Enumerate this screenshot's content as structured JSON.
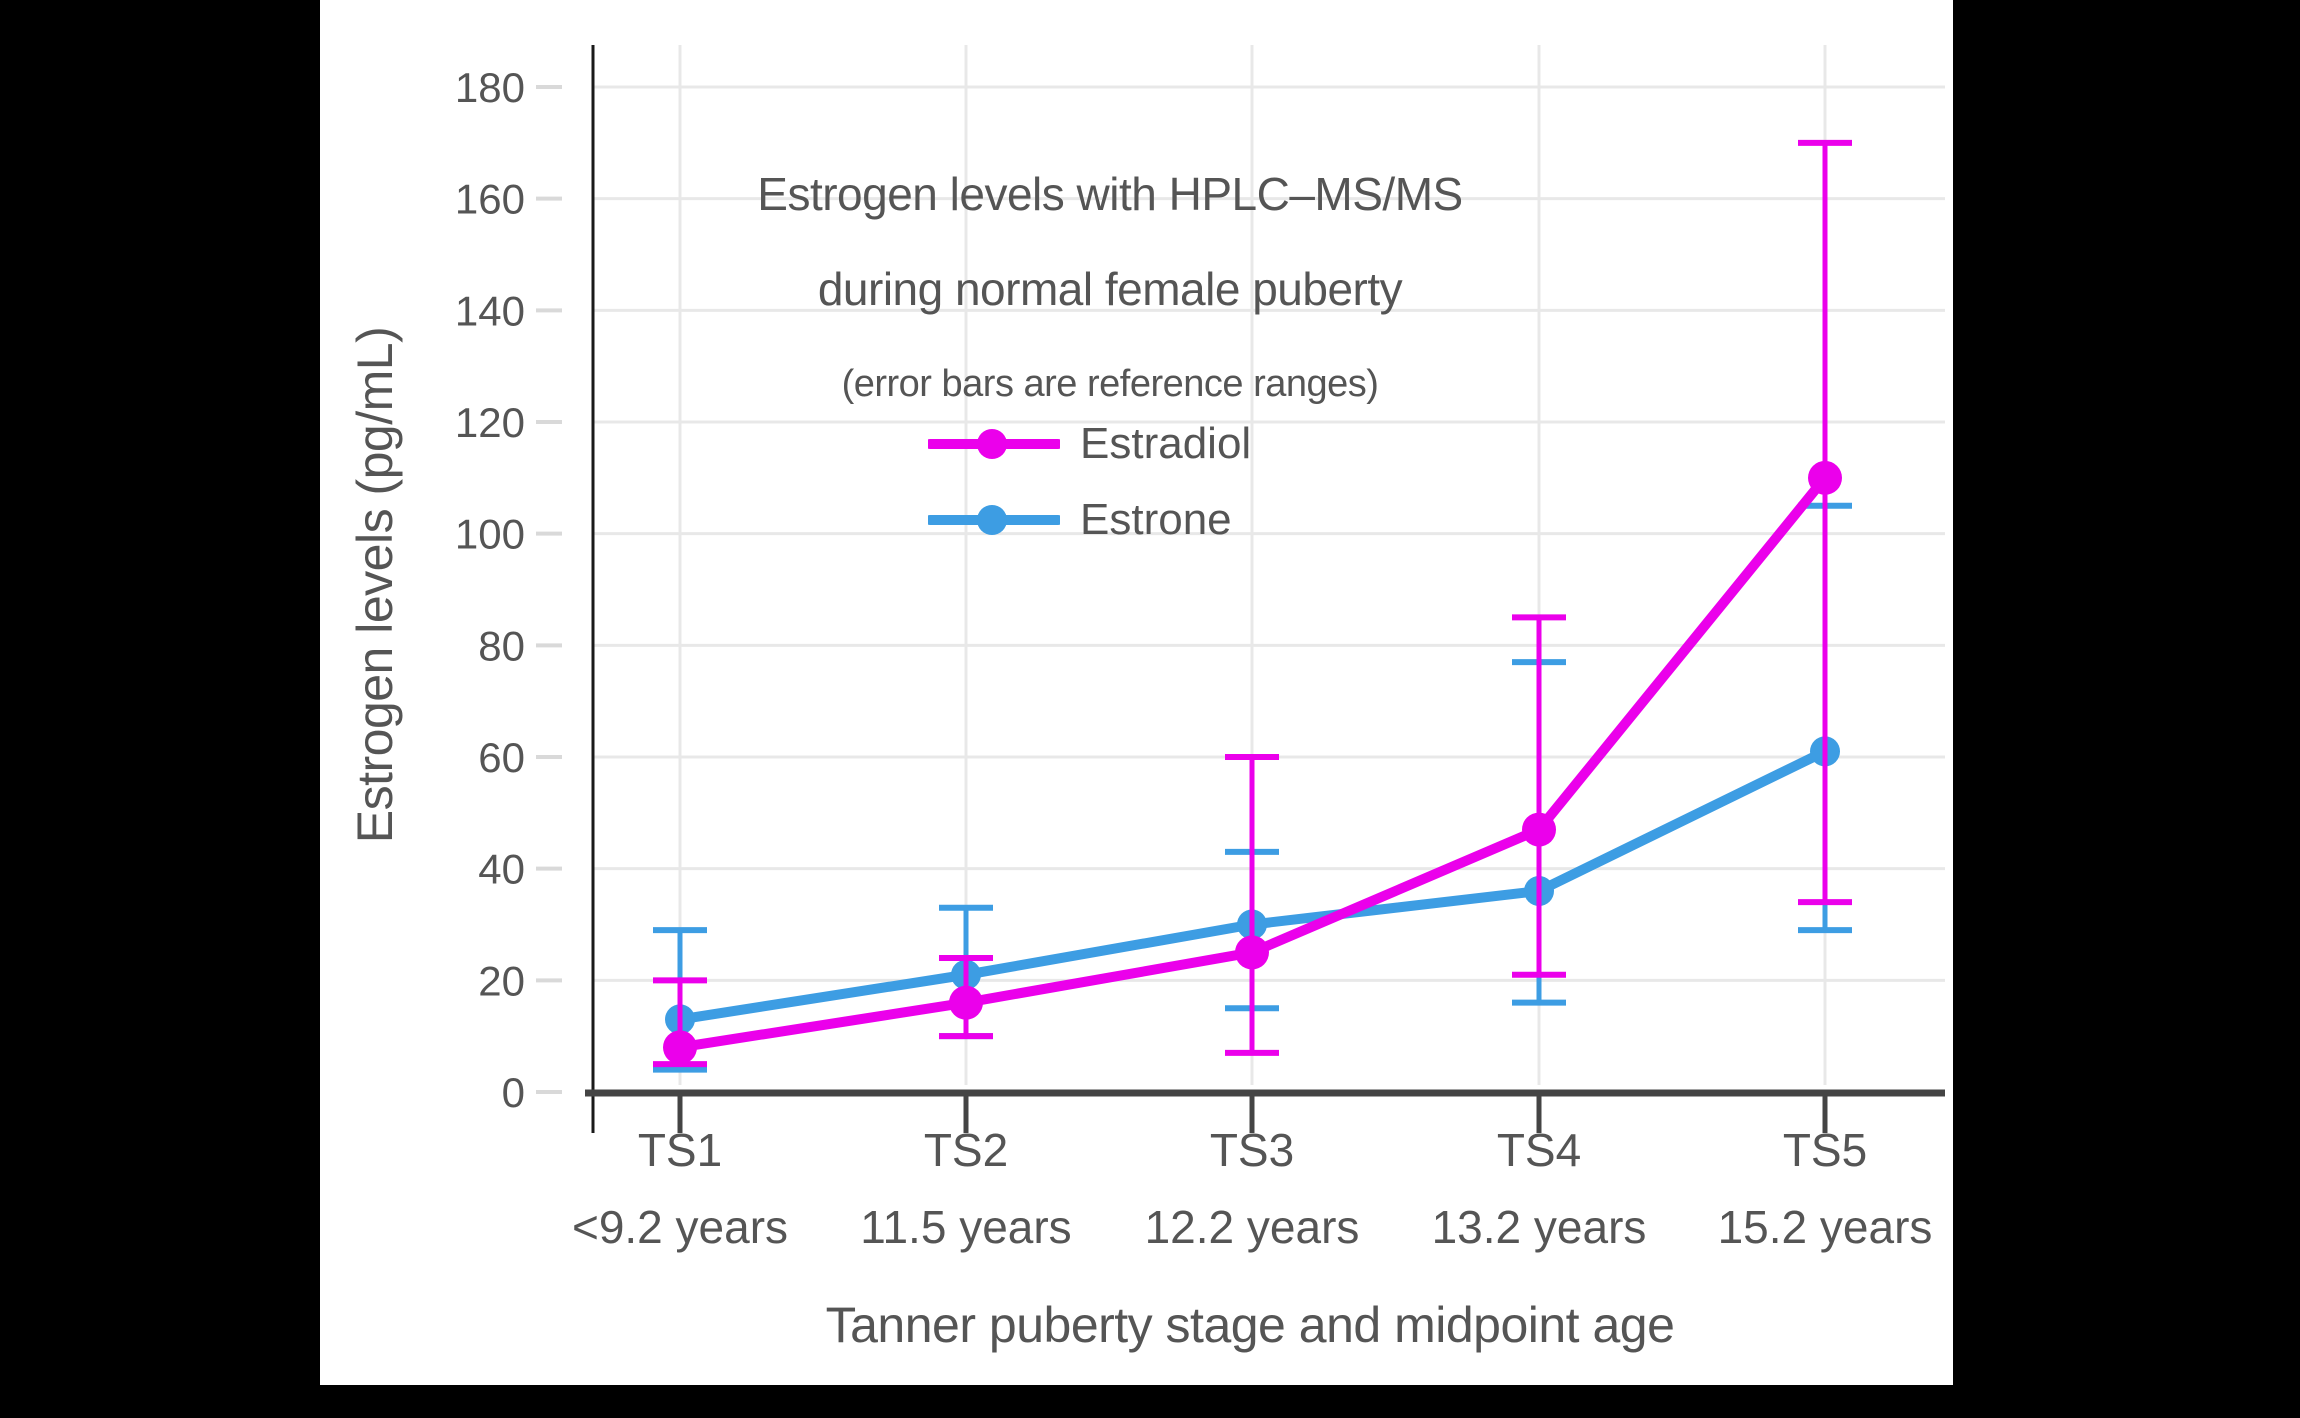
{
  "page": {
    "background_color": "#000000",
    "canvas_color": "#ffffff"
  },
  "style": {
    "text_color": "#555555",
    "grid_color": "#e8e8e8",
    "x_axis_color": "#444444",
    "y_axis_color": "#1a1a1a",
    "y_tick_color": "#d9d9d9"
  },
  "chart_data": {
    "type": "line",
    "title_line1": "Estrogen levels with HPLC–MS/MS",
    "title_line2": "during normal female puberty",
    "subtitle": "(error bars are reference ranges)",
    "xlabel": "Tanner puberty stage and midpoint age",
    "ylabel": "Estrogen levels (pg/mL)",
    "legend_position": "inside upper-left",
    "grid": true,
    "error_bars": "reference ranges",
    "x_categories": [
      {
        "stage": "TS1",
        "age": "<9.2 years"
      },
      {
        "stage": "TS2",
        "age": "11.5 years"
      },
      {
        "stage": "TS3",
        "age": "12.2 years"
      },
      {
        "stage": "TS4",
        "age": "13.2 years"
      },
      {
        "stage": "TS5",
        "age": "15.2 years"
      }
    ],
    "y_axis": {
      "min": 0,
      "max": 180,
      "tick_step": 20,
      "tick_labels": [
        "0",
        "20",
        "40",
        "60",
        "80",
        "100",
        "120",
        "140",
        "160",
        "180"
      ],
      "unit": "pg/mL"
    },
    "series": [
      {
        "name": "Estradiol",
        "color": "#eb00eb",
        "values": [
          8,
          16,
          25,
          47,
          110
        ],
        "error_low": [
          5,
          10,
          7,
          21,
          34
        ],
        "error_high": [
          20,
          24,
          60,
          85,
          170
        ]
      },
      {
        "name": "Estrone",
        "color": "#3d9de3",
        "values": [
          13,
          21,
          30,
          36,
          61
        ],
        "error_low": [
          4,
          10,
          15,
          16,
          29
        ],
        "error_high": [
          29,
          33,
          43,
          77,
          105
        ]
      }
    ]
  }
}
